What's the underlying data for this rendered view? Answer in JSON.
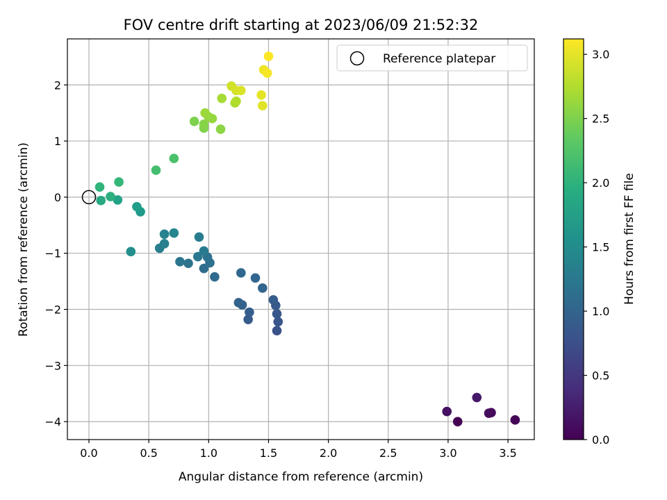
{
  "chart_data": {
    "type": "scatter",
    "title": "FOV centre drift starting at 2023/06/09 21:52:32",
    "xlabel": "Angular distance from reference (arcmin)",
    "ylabel": "Rotation from reference (arcmin)",
    "xlim": [
      -0.18,
      3.72
    ],
    "ylim": [
      -4.32,
      2.82
    ],
    "x_ticks": [
      0.0,
      0.5,
      1.0,
      1.5,
      2.0,
      2.5,
      3.0,
      3.5
    ],
    "x_tick_labels": [
      "0.0",
      "0.5",
      "1.0",
      "1.5",
      "2.0",
      "2.5",
      "3.0",
      "3.5"
    ],
    "y_ticks": [
      2,
      1,
      0,
      -1,
      -2,
      -3,
      -4
    ],
    "y_tick_labels": [
      "2",
      "1",
      "0",
      "−1",
      "−2",
      "−3",
      "−4"
    ],
    "grid": true,
    "legend": {
      "position": "top-right",
      "entries": [
        "Reference platepar"
      ]
    },
    "reference_point": {
      "x": 0.0,
      "y": 0.0,
      "marker": "open-circle"
    },
    "colorbar": {
      "label": "Hours from first FF file",
      "range": [
        0.0,
        3.12
      ],
      "ticks": [
        0.0,
        0.5,
        1.0,
        1.5,
        2.0,
        2.5,
        3.0
      ],
      "tick_labels": [
        "0.0",
        "0.5",
        "1.0",
        "1.5",
        "2.0",
        "2.5",
        "3.0"
      ],
      "colormap": "viridis"
    },
    "points": [
      {
        "x": 3.08,
        "y": -4.0,
        "c": 0.0
      },
      {
        "x": 3.56,
        "y": -3.97,
        "c": 0.03
      },
      {
        "x": 3.36,
        "y": -3.84,
        "c": 0.07
      },
      {
        "x": 3.34,
        "y": -3.85,
        "c": 0.1
      },
      {
        "x": 2.99,
        "y": -3.82,
        "c": 0.14
      },
      {
        "x": 3.24,
        "y": -3.57,
        "c": 0.2
      },
      {
        "x": 1.57,
        "y": -2.38,
        "c": 0.78
      },
      {
        "x": 1.58,
        "y": -2.22,
        "c": 0.82
      },
      {
        "x": 1.57,
        "y": -2.08,
        "c": 0.86
      },
      {
        "x": 1.56,
        "y": -1.93,
        "c": 0.88
      },
      {
        "x": 1.54,
        "y": -1.83,
        "c": 0.9
      },
      {
        "x": 1.33,
        "y": -2.18,
        "c": 0.9
      },
      {
        "x": 1.34,
        "y": -2.05,
        "c": 0.93
      },
      {
        "x": 1.28,
        "y": -1.92,
        "c": 0.96
      },
      {
        "x": 1.25,
        "y": -1.88,
        "c": 0.98
      },
      {
        "x": 1.45,
        "y": -1.62,
        "c": 1.0
      },
      {
        "x": 1.39,
        "y": -1.44,
        "c": 1.02
      },
      {
        "x": 1.27,
        "y": -1.35,
        "c": 1.04
      },
      {
        "x": 1.05,
        "y": -1.42,
        "c": 1.08
      },
      {
        "x": 0.96,
        "y": -1.27,
        "c": 1.1
      },
      {
        "x": 1.01,
        "y": -1.17,
        "c": 1.14
      },
      {
        "x": 0.99,
        "y": -1.07,
        "c": 1.17
      },
      {
        "x": 0.83,
        "y": -1.18,
        "c": 1.2
      },
      {
        "x": 0.76,
        "y": -1.15,
        "c": 1.22
      },
      {
        "x": 0.91,
        "y": -1.06,
        "c": 1.25
      },
      {
        "x": 0.96,
        "y": -0.96,
        "c": 1.28
      },
      {
        "x": 0.92,
        "y": -0.71,
        "c": 1.3
      },
      {
        "x": 0.59,
        "y": -0.91,
        "c": 1.33
      },
      {
        "x": 0.63,
        "y": -0.83,
        "c": 1.36
      },
      {
        "x": 0.63,
        "y": -0.66,
        "c": 1.4
      },
      {
        "x": 0.71,
        "y": -0.64,
        "c": 1.43
      },
      {
        "x": 0.35,
        "y": -0.97,
        "c": 1.55
      },
      {
        "x": 0.43,
        "y": -0.26,
        "c": 1.7
      },
      {
        "x": 0.4,
        "y": -0.17,
        "c": 1.74
      },
      {
        "x": 0.24,
        "y": -0.05,
        "c": 1.8
      },
      {
        "x": 0.1,
        "y": -0.06,
        "c": 1.88
      },
      {
        "x": 0.18,
        "y": 0.01,
        "c": 1.95
      },
      {
        "x": 0.09,
        "y": 0.18,
        "c": 2.02
      },
      {
        "x": 0.25,
        "y": 0.27,
        "c": 2.08
      },
      {
        "x": 0.56,
        "y": 0.48,
        "c": 2.17
      },
      {
        "x": 0.71,
        "y": 0.69,
        "c": 2.22
      },
      {
        "x": 0.88,
        "y": 1.35,
        "c": 2.5
      },
      {
        "x": 0.96,
        "y": 1.23,
        "c": 2.52
      },
      {
        "x": 0.96,
        "y": 1.3,
        "c": 2.55
      },
      {
        "x": 1.1,
        "y": 1.21,
        "c": 2.58
      },
      {
        "x": 1.0,
        "y": 1.43,
        "c": 2.6
      },
      {
        "x": 1.03,
        "y": 1.4,
        "c": 2.62
      },
      {
        "x": 0.97,
        "y": 1.5,
        "c": 2.65
      },
      {
        "x": 1.11,
        "y": 1.76,
        "c": 2.7
      },
      {
        "x": 1.22,
        "y": 1.68,
        "c": 2.72
      },
      {
        "x": 1.23,
        "y": 1.71,
        "c": 2.76
      },
      {
        "x": 1.19,
        "y": 1.98,
        "c": 2.9
      },
      {
        "x": 1.23,
        "y": 1.9,
        "c": 2.93
      },
      {
        "x": 1.27,
        "y": 1.9,
        "c": 2.95
      },
      {
        "x": 1.45,
        "y": 1.63,
        "c": 2.98
      },
      {
        "x": 1.44,
        "y": 1.82,
        "c": 3.0
      },
      {
        "x": 1.46,
        "y": 2.27,
        "c": 3.05
      },
      {
        "x": 1.49,
        "y": 2.21,
        "c": 3.08
      },
      {
        "x": 1.5,
        "y": 2.51,
        "c": 3.12
      }
    ]
  }
}
